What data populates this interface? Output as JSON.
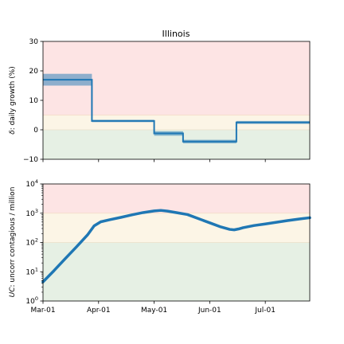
{
  "chart_data": [
    {
      "type": "line",
      "title": "Illinois",
      "ylabel_symbol": "δ",
      "ylabel_text": ": daily growth (%)",
      "ylim": [
        -10,
        30
      ],
      "yticks": [
        -10,
        0,
        10,
        20,
        30
      ],
      "ytick_labels": [
        "−10",
        "0",
        "10",
        "20",
        "30"
      ],
      "x_range_days": [
        0,
        120
      ],
      "bands": [
        {
          "from": -10,
          "to": 0,
          "color": "#e6f0e4"
        },
        {
          "from": 0,
          "to": 5,
          "color": "#fcf5e6"
        },
        {
          "from": 5,
          "to": 30,
          "color": "#fde4e4"
        }
      ],
      "band_lines": [
        {
          "y": 0,
          "color": "#eadfc8"
        },
        {
          "y": 5,
          "color": "#f3d9c4"
        }
      ],
      "series": [
        {
          "color": "#1f77b4",
          "segments": [
            {
              "x": [
                0,
                22
              ],
              "y": 17,
              "lo": 15,
              "hi": 19
            },
            {
              "x": [
                22,
                50
              ],
              "y": 3,
              "lo": 2.6,
              "hi": 3.4
            },
            {
              "x": [
                50,
                63
              ],
              "y": -1.2,
              "lo": -2,
              "hi": -0.5
            },
            {
              "x": [
                63,
                87
              ],
              "y": -4,
              "lo": -4.6,
              "hi": -3.4
            },
            {
              "x": [
                87,
                120
              ],
              "y": 2.5,
              "lo": 2,
              "hi": 3
            }
          ]
        }
      ]
    },
    {
      "type": "line",
      "ylabel_symbol": "UC",
      "ylabel_text": ": uncorr contagious / million",
      "yscale": "log",
      "ylim": [
        1,
        10000
      ],
      "yticks": [
        1,
        10,
        100,
        1000,
        10000
      ],
      "ytick_exponents": [
        "0",
        "1",
        "2",
        "3",
        "4"
      ],
      "x_range_days": [
        0,
        120
      ],
      "xtick_days": [
        0,
        25,
        50,
        75,
        100
      ],
      "xtick_labels": [
        "Mar-01",
        "Apr-01",
        "May-01",
        "Jun-01",
        "Jul-01"
      ],
      "bands": [
        {
          "from": 1,
          "to": 100,
          "color": "#e6f0e4"
        },
        {
          "from": 100,
          "to": 1000,
          "color": "#fcf5e6"
        },
        {
          "from": 1000,
          "to": 10000,
          "color": "#fde4e4"
        }
      ],
      "band_lines": [
        {
          "y": 100,
          "color": "#eadfc8"
        },
        {
          "y": 1000,
          "color": "#f3d9c4"
        }
      ],
      "series": [
        {
          "color": "#1f77b4",
          "x": [
            0,
            5,
            10,
            15,
            20,
            23,
            26,
            30,
            35,
            40,
            45,
            50,
            53,
            56,
            60,
            65,
            70,
            75,
            80,
            84,
            86,
            88,
            90,
            95,
            100,
            105,
            110,
            115,
            120
          ],
          "y": [
            4.5,
            11,
            28,
            70,
            180,
            370,
            510,
            600,
            720,
            880,
            1050,
            1200,
            1250,
            1180,
            1050,
            900,
            650,
            470,
            340,
            280,
            270,
            290,
            320,
            380,
            430,
            490,
            560,
            630,
            700
          ]
        }
      ]
    }
  ]
}
